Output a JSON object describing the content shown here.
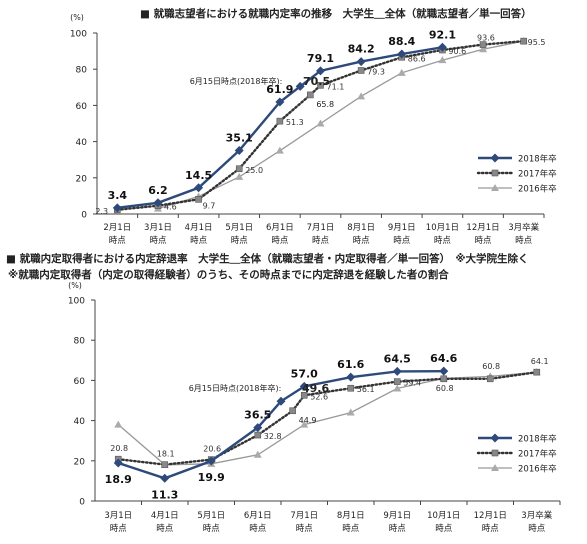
{
  "chart_data": [
    {
      "type": "line",
      "title": "■ 就職志望者における就職内定率の推移　大学生＿全体（就職志望者／単一回答）",
      "ylabel": "(%)",
      "ylim": [
        0,
        100
      ],
      "yticks": [
        0,
        20,
        40,
        60,
        80,
        100
      ],
      "grid": false,
      "legend_position": "lower-right",
      "categories": [
        [
          "2月1日",
          "時点"
        ],
        [
          "3月1日",
          "時点"
        ],
        [
          "4月1日",
          "時点"
        ],
        [
          "5月1日",
          "時点"
        ],
        [
          "6月1日",
          "時点"
        ],
        [
          "7月1日",
          "時点"
        ],
        [
          "8月1日",
          "時点"
        ],
        [
          "9月1日",
          "時点"
        ],
        [
          "10月1日",
          "時点"
        ],
        [
          "12月1日",
          "時点"
        ],
        [
          "3月卒業",
          "時点"
        ]
      ],
      "annotation": "6月15日時点(2018年卒):",
      "annotation_value": "70.5",
      "annotation_x": 4.5,
      "series": [
        {
          "name": "2018年卒",
          "color": "#2e4a7a",
          "style": "solid",
          "marker": "diamond",
          "values": [
            3.4,
            6.2,
            14.5,
            35.1,
            61.9,
            79.1,
            84.2,
            88.4,
            92.1,
            null,
            null
          ],
          "extra": [
            {
              "x": 4.5,
              "y": 70.5
            }
          ],
          "labels": [
            "3.4",
            "6.2",
            "14.5",
            "35.1",
            "61.9",
            "79.1",
            "84.2",
            "88.4",
            "92.1",
            "",
            ""
          ]
        },
        {
          "name": "2017年卒",
          "color": "#333333",
          "style": "dotted",
          "marker": "square",
          "values": [
            2.3,
            4.6,
            8.1,
            25.0,
            51.3,
            71.1,
            79.3,
            86.6,
            90.6,
            93.6,
            95.5
          ],
          "extra": [
            {
              "x": 4.75,
              "y": 65.8
            }
          ],
          "labels": [
            "2.3",
            "4.6",
            "",
            "25.0",
            "51.3",
            "71.1",
            "79.3",
            "86.6",
            "90.6",
            "93.6",
            "95.5"
          ],
          "extra_labels": [
            "65.8"
          ]
        },
        {
          "name": "2016年卒",
          "color": "#999999",
          "style": "solid",
          "marker": "triangle",
          "values": [
            null,
            3.0,
            9.7,
            20.5,
            35.0,
            50.0,
            65.0,
            78.0,
            85.0,
            91.0,
            95.5
          ],
          "labels": [
            "",
            "",
            "9.7",
            "",
            "",
            "",
            "",
            "",
            "",
            "",
            ""
          ]
        }
      ]
    },
    {
      "type": "line",
      "title": "■ 就職内定取得者における内定辞退率　大学生＿全体（就職志望者・内定取得者／単一回答）　※大学院生除く",
      "subtitle": "※就職内定取得者（内定の取得経験者）のうち、その時点までに内定辞退を経験した者の割合",
      "ylabel": "(%)",
      "ylim": [
        0,
        100
      ],
      "yticks": [
        0,
        20,
        40,
        60,
        80,
        100
      ],
      "grid": false,
      "legend_position": "right",
      "categories": [
        [
          "3月1日",
          "時点"
        ],
        [
          "4月1日",
          "時点"
        ],
        [
          "5月1日",
          "時点"
        ],
        [
          "6月1日",
          "時点"
        ],
        [
          "7月1日",
          "時点"
        ],
        [
          "8月1日",
          "時点"
        ],
        [
          "9月1日",
          "時点"
        ],
        [
          "10月1日",
          "時点"
        ],
        [
          "12月1日",
          "時点"
        ],
        [
          "3月卒業",
          "時点"
        ]
      ],
      "annotation": "6月15日時点(2018年卒):",
      "annotation_value": "49.6",
      "annotation_x": 3.5,
      "series": [
        {
          "name": "2018年卒",
          "color": "#2e4a7a",
          "style": "solid",
          "marker": "diamond",
          "values": [
            18.9,
            11.3,
            19.9,
            36.5,
            57.0,
            61.6,
            64.5,
            64.6,
            null,
            null
          ],
          "extra": [
            {
              "x": 3.5,
              "y": 49.6
            }
          ],
          "labels": [
            "18.9",
            "11.3",
            "19.9",
            "36.5",
            "57.0",
            "61.6",
            "64.5",
            "64.6",
            "",
            ""
          ]
        },
        {
          "name": "2017年卒",
          "color": "#333333",
          "style": "dotted",
          "marker": "square",
          "values": [
            20.8,
            18.1,
            20.6,
            32.8,
            52.6,
            56.1,
            59.4,
            60.8,
            60.8,
            64.1
          ],
          "extra": [
            {
              "x": 3.75,
              "y": 44.9
            }
          ],
          "labels": [
            "20.8",
            "18.1",
            "20.6",
            "32.8",
            "52.6",
            "56.1",
            "59.4",
            "60.8",
            "60.8",
            "64.1"
          ],
          "extra_labels": [
            "44.9"
          ]
        },
        {
          "name": "2016年卒",
          "color": "#999999",
          "style": "solid",
          "marker": "triangle",
          "values": [
            38.0,
            18.0,
            18.5,
            23.0,
            38.0,
            44.0,
            56.0,
            61.0,
            62.0,
            64.1
          ],
          "labels": [
            "",
            "",
            "",
            "",
            "",
            "",
            "",
            "",
            "",
            ""
          ]
        }
      ]
    }
  ]
}
